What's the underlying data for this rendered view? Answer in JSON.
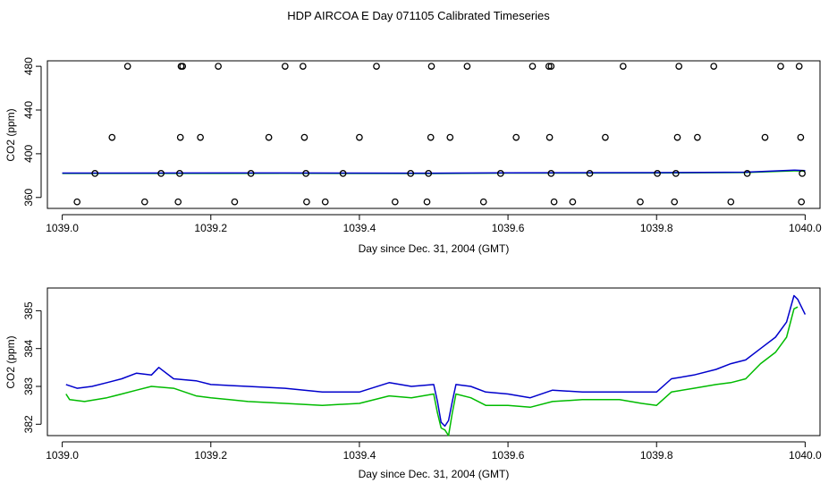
{
  "figure": {
    "title": "HDP AIRCOA E  Day 071105  Calibrated Timeseries"
  },
  "chart_data": [
    {
      "type": "scatter",
      "xlabel": "Day since Dec. 31, 2004 (GMT)",
      "ylabel": "CO2 (ppm)",
      "xlim": [
        1038.98,
        1040.02
      ],
      "ylim": [
        350,
        485
      ],
      "x_ticks": [
        1039.0,
        1039.2,
        1039.4,
        1039.6,
        1039.8,
        1040.0
      ],
      "x_tick_labels": [
        "1039.0",
        "1039.2",
        "1039.4",
        "1039.6",
        "1039.8",
        "1040.0"
      ],
      "y_ticks": [
        360,
        400,
        440,
        480
      ],
      "y_tick_labels": [
        "360",
        "400",
        "440",
        "480"
      ],
      "points": [
        [
          1039.088,
          480
        ],
        [
          1039.16,
          480
        ],
        [
          1039.162,
          480
        ],
        [
          1039.21,
          480
        ],
        [
          1039.3,
          480
        ],
        [
          1039.324,
          480
        ],
        [
          1039.423,
          480
        ],
        [
          1039.497,
          480
        ],
        [
          1039.545,
          480
        ],
        [
          1039.633,
          480
        ],
        [
          1039.655,
          480
        ],
        [
          1039.658,
          480
        ],
        [
          1039.755,
          480
        ],
        [
          1039.83,
          480
        ],
        [
          1039.877,
          480
        ],
        [
          1039.967,
          480
        ],
        [
          1039.992,
          480
        ],
        [
          1039.067,
          415
        ],
        [
          1039.159,
          415
        ],
        [
          1039.186,
          415
        ],
        [
          1039.278,
          415
        ],
        [
          1039.326,
          415
        ],
        [
          1039.4,
          415
        ],
        [
          1039.496,
          415
        ],
        [
          1039.522,
          415
        ],
        [
          1039.611,
          415
        ],
        [
          1039.656,
          415
        ],
        [
          1039.731,
          415
        ],
        [
          1039.828,
          415
        ],
        [
          1039.855,
          415
        ],
        [
          1039.946,
          415
        ],
        [
          1039.994,
          415
        ],
        [
          1039.044,
          382
        ],
        [
          1039.133,
          382
        ],
        [
          1039.158,
          382
        ],
        [
          1039.254,
          382
        ],
        [
          1039.328,
          382
        ],
        [
          1039.378,
          382
        ],
        [
          1039.469,
          382
        ],
        [
          1039.493,
          382
        ],
        [
          1039.59,
          382
        ],
        [
          1039.658,
          382
        ],
        [
          1039.71,
          382
        ],
        [
          1039.801,
          382
        ],
        [
          1039.826,
          382
        ],
        [
          1039.922,
          382
        ],
        [
          1039.996,
          382
        ],
        [
          1039.02,
          356
        ],
        [
          1039.111,
          356
        ],
        [
          1039.156,
          356
        ],
        [
          1039.232,
          356
        ],
        [
          1039.329,
          356
        ],
        [
          1039.354,
          356
        ],
        [
          1039.448,
          356
        ],
        [
          1039.491,
          356
        ],
        [
          1039.567,
          356
        ],
        [
          1039.662,
          356
        ],
        [
          1039.687,
          356
        ],
        [
          1039.778,
          356
        ],
        [
          1039.824,
          356
        ],
        [
          1039.9,
          356
        ],
        [
          1039.995,
          356
        ]
      ],
      "series": [
        {
          "color": "#0000cc",
          "trend": [
            [
              1039.0,
              382.3
            ],
            [
              1039.3,
              382.4
            ],
            [
              1039.5,
              382.2
            ],
            [
              1039.6,
              382.6
            ],
            [
              1039.8,
              382.7
            ],
            [
              1039.92,
              383.1
            ],
            [
              1039.985,
              385.0
            ],
            [
              1040.0,
              384.5
            ]
          ]
        },
        {
          "color": "#00bb00",
          "trend": [
            [
              1039.0,
              382.0
            ],
            [
              1039.3,
              382.1
            ],
            [
              1039.5,
              381.9
            ],
            [
              1039.6,
              382.3
            ],
            [
              1039.8,
              382.4
            ],
            [
              1039.92,
              382.8
            ],
            [
              1039.985,
              384.4
            ],
            [
              1040.0,
              384.2
            ]
          ]
        }
      ],
      "marker_color": "#000000"
    },
    {
      "type": "line",
      "xlabel": "Day since Dec. 31, 2004 (GMT)",
      "ylabel": "CO2 (ppm)",
      "xlim": [
        1038.98,
        1040.02
      ],
      "ylim": [
        381.7,
        385.6
      ],
      "x_ticks": [
        1039.0,
        1039.2,
        1039.4,
        1039.6,
        1039.8,
        1040.0
      ],
      "x_tick_labels": [
        "1039.0",
        "1039.2",
        "1039.4",
        "1039.6",
        "1039.8",
        "1040.0"
      ],
      "y_ticks": [
        382,
        383,
        384,
        385
      ],
      "y_tick_labels": [
        "382",
        "383",
        "384",
        "385"
      ],
      "series": [
        {
          "color": "#0000cc",
          "points": [
            [
              1039.005,
              383.05
            ],
            [
              1039.02,
              382.95
            ],
            [
              1039.04,
              383.0
            ],
            [
              1039.06,
              383.1
            ],
            [
              1039.08,
              383.2
            ],
            [
              1039.1,
              383.35
            ],
            [
              1039.12,
              383.3
            ],
            [
              1039.13,
              383.5
            ],
            [
              1039.15,
              383.2
            ],
            [
              1039.18,
              383.15
            ],
            [
              1039.2,
              383.05
            ],
            [
              1039.25,
              383.0
            ],
            [
              1039.3,
              382.95
            ],
            [
              1039.35,
              382.85
            ],
            [
              1039.4,
              382.85
            ],
            [
              1039.44,
              383.1
            ],
            [
              1039.47,
              383.0
            ],
            [
              1039.5,
              383.05
            ],
            [
              1039.505,
              382.6
            ],
            [
              1039.51,
              382.05
            ],
            [
              1039.515,
              381.95
            ],
            [
              1039.52,
              382.1
            ],
            [
              1039.525,
              382.6
            ],
            [
              1039.53,
              383.05
            ],
            [
              1039.55,
              383.0
            ],
            [
              1039.57,
              382.85
            ],
            [
              1039.6,
              382.8
            ],
            [
              1039.63,
              382.7
            ],
            [
              1039.66,
              382.9
            ],
            [
              1039.7,
              382.85
            ],
            [
              1039.75,
              382.85
            ],
            [
              1039.78,
              382.85
            ],
            [
              1039.8,
              382.85
            ],
            [
              1039.82,
              383.2
            ],
            [
              1039.85,
              383.3
            ],
            [
              1039.88,
              383.45
            ],
            [
              1039.9,
              383.6
            ],
            [
              1039.92,
              383.7
            ],
            [
              1039.94,
              384.0
            ],
            [
              1039.96,
              384.3
            ],
            [
              1039.975,
              384.7
            ],
            [
              1039.985,
              385.4
            ],
            [
              1039.99,
              385.3
            ],
            [
              1040.0,
              384.9
            ]
          ]
        },
        {
          "color": "#00bb00",
          "points": [
            [
              1039.005,
              382.8
            ],
            [
              1039.01,
              382.65
            ],
            [
              1039.03,
              382.6
            ],
            [
              1039.06,
              382.7
            ],
            [
              1039.08,
              382.8
            ],
            [
              1039.1,
              382.9
            ],
            [
              1039.12,
              383.0
            ],
            [
              1039.15,
              382.95
            ],
            [
              1039.18,
              382.75
            ],
            [
              1039.2,
              382.7
            ],
            [
              1039.25,
              382.6
            ],
            [
              1039.3,
              382.55
            ],
            [
              1039.35,
              382.5
            ],
            [
              1039.4,
              382.55
            ],
            [
              1039.44,
              382.75
            ],
            [
              1039.47,
              382.7
            ],
            [
              1039.5,
              382.8
            ],
            [
              1039.505,
              382.3
            ],
            [
              1039.51,
              381.9
            ],
            [
              1039.515,
              381.85
            ],
            [
              1039.52,
              381.7
            ],
            [
              1039.525,
              382.3
            ],
            [
              1039.53,
              382.8
            ],
            [
              1039.55,
              382.7
            ],
            [
              1039.57,
              382.5
            ],
            [
              1039.6,
              382.5
            ],
            [
              1039.63,
              382.45
            ],
            [
              1039.66,
              382.6
            ],
            [
              1039.7,
              382.65
            ],
            [
              1039.75,
              382.65
            ],
            [
              1039.78,
              382.55
            ],
            [
              1039.8,
              382.5
            ],
            [
              1039.82,
              382.85
            ],
            [
              1039.85,
              382.95
            ],
            [
              1039.88,
              383.05
            ],
            [
              1039.9,
              383.1
            ],
            [
              1039.92,
              383.2
            ],
            [
              1039.94,
              383.6
            ],
            [
              1039.96,
              383.9
            ],
            [
              1039.975,
              384.3
            ],
            [
              1039.985,
              385.05
            ],
            [
              1039.99,
              385.1
            ]
          ]
        }
      ]
    }
  ]
}
